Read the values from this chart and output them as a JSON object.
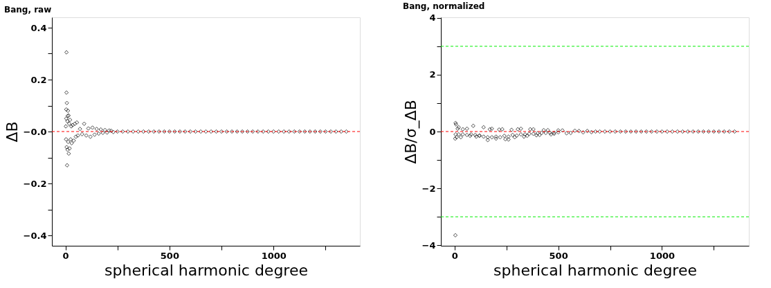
{
  "chart_data": [
    {
      "type": "scatter",
      "title": "Bang, raw",
      "xlabel": "spherical harmonic degree",
      "ylabel": "ΔB",
      "marker": "diamond",
      "grid": false,
      "legend": false,
      "xlim": [
        -65,
        1415
      ],
      "xticks": [
        0,
        {
          "value": 250,
          "label": null
        },
        500,
        {
          "value": 750,
          "label": null
        },
        1000,
        {
          "value": 1250,
          "label": null
        }
      ],
      "ylim": [
        -0.44,
        0.44
      ],
      "yticks": [
        -0.4,
        {
          "value": -0.3,
          "label": null
        },
        -0.2,
        {
          "value": -0.1,
          "label": null
        },
        {
          "value": 0,
          "label": "−0.0"
        },
        {
          "value": 0.1,
          "label": null
        },
        0.2,
        {
          "value": 0.3,
          "label": null
        },
        0.4
      ],
      "ref_lines": [
        {
          "axis": "y",
          "value": 0,
          "color": "#ff0000",
          "line_style": "dashed"
        }
      ],
      "series": [
        {
          "color": "#000000",
          "x": [
            2,
            3,
            4,
            4,
            5,
            5,
            6,
            7,
            8,
            9,
            10,
            11,
            12,
            13,
            15,
            16,
            18,
            20,
            22,
            25,
            28,
            30,
            35,
            40,
            45,
            50,
            55,
            60,
            70,
            80,
            90,
            100,
            110,
            120,
            130,
            140,
            150,
            160,
            170,
            180,
            190,
            200,
            210,
            220,
            230,
            250,
            275,
            300,
            325,
            350,
            375,
            400,
            425,
            450,
            475,
            500,
            525,
            550,
            575,
            600,
            625,
            650,
            675,
            700,
            725,
            750,
            775,
            800,
            825,
            850,
            875,
            900,
            925,
            950,
            975,
            1000,
            1025,
            1050,
            1075,
            1100,
            1125,
            1150,
            1175,
            1200,
            1225,
            1250,
            1275,
            1300,
            1325,
            1350
          ],
          "values": [
            0.02,
            -0.03,
            0.05,
            0.085,
            0.305,
            0.15,
            -0.06,
            0.11,
            -0.13,
            0.04,
            -0.07,
            0.06,
            0.08,
            -0.04,
            0.062,
            -0.085,
            0.03,
            -0.065,
            0.045,
            -0.03,
            0.02,
            -0.045,
            0.025,
            -0.035,
            0.03,
            -0.02,
            0.035,
            -0.015,
            0.01,
            -0.01,
            0.03,
            -0.015,
            0.012,
            -0.02,
            0.015,
            -0.012,
            0.01,
            -0.008,
            0.008,
            -0.005,
            0.006,
            -0.004,
            0.004,
            0.003,
            -0.002,
            0,
            0,
            0,
            0,
            0,
            0,
            0,
            0,
            0,
            0,
            0,
            0,
            0,
            0,
            0,
            0,
            0,
            0,
            0,
            0,
            0,
            0,
            0,
            0,
            0,
            0,
            0,
            0,
            0,
            0,
            0,
            0,
            0,
            0,
            0,
            0,
            0,
            0,
            0,
            0,
            0,
            0,
            0,
            0,
            0
          ]
        }
      ]
    },
    {
      "type": "scatter",
      "title": "Bang, normalized",
      "xlabel": "spherical harmonic degree",
      "ylabel": "ΔB/σ_ΔB",
      "marker": "diamond",
      "grid": false,
      "legend": false,
      "xlim": [
        -66,
        1419
      ],
      "xticks": [
        0,
        {
          "value": 250,
          "label": null
        },
        500,
        {
          "value": 750,
          "label": null
        },
        1000,
        {
          "value": 1250,
          "label": null
        }
      ],
      "ylim": [
        -4.02,
        4.02
      ],
      "yticks": [
        -4,
        {
          "value": -3,
          "label": null
        },
        -2,
        {
          "value": -1,
          "label": null
        },
        0,
        {
          "value": 1,
          "label": null
        },
        2,
        {
          "value": 3,
          "label": null
        },
        4
      ],
      "ref_lines": [
        {
          "axis": "y",
          "value": 0,
          "color": "#ff0000",
          "line_style": "dashed"
        },
        {
          "axis": "y",
          "value": 3,
          "color": "#00ee00",
          "line_style": "dashed"
        },
        {
          "axis": "y",
          "value": -3,
          "color": "#00ee00",
          "line_style": "dashed"
        }
      ],
      "series": [
        {
          "color": "#000000",
          "x": [
            3,
            4,
            5,
            7,
            10,
            15,
            20,
            30,
            40,
            60,
            75,
            90,
            105,
            120,
            140,
            160,
            170,
            180,
            200,
            215,
            230,
            245,
            260,
            275,
            290,
            305,
            320,
            335,
            350,
            365,
            380,
            395,
            410,
            430,
            450,
            465,
            480,
            500,
            520,
            540,
            560,
            580,
            600,
            620,
            640,
            660,
            5,
            20,
            40,
            60,
            80,
            100,
            120,
            140,
            160,
            180,
            200,
            220,
            240,
            260,
            280,
            300,
            320,
            340,
            360,
            380,
            400,
            420,
            440,
            460,
            480,
            500,
            680,
            700,
            725,
            750,
            775,
            800,
            825,
            850,
            875,
            900,
            925,
            950,
            975,
            1000,
            1025,
            1050,
            1075,
            1100,
            1125,
            1150,
            1175,
            1200,
            1225,
            1250,
            1275,
            1300,
            1325,
            1350
          ],
          "values": [
            -0.25,
            -3.65,
            0.3,
            0.25,
            -0.2,
            0.1,
            0.15,
            -0.2,
            0.08,
            0.1,
            -0.15,
            0.2,
            -0.18,
            -0.15,
            0.15,
            -0.3,
            0.08,
            0.1,
            -0.25,
            0.07,
            0.08,
            -0.27,
            -0.28,
            0.06,
            -0.2,
            0.08,
            0.1,
            -0.18,
            -0.15,
            0.08,
            0.08,
            -0.13,
            -0.12,
            0.05,
            0.05,
            -0.1,
            -0.08,
            0.04,
            0.04,
            -0.06,
            -0.05,
            0.03,
            0.02,
            -0.03,
            0.02,
            -0.02,
            -0.1,
            -0.1,
            -0.1,
            -0.12,
            -0.1,
            -0.12,
            -0.14,
            -0.18,
            -0.2,
            -0.2,
            -0.18,
            -0.2,
            -0.15,
            -0.18,
            -0.12,
            -0.14,
            -0.1,
            -0.1,
            -0.08,
            -0.08,
            -0.06,
            -0.05,
            -0.05,
            -0.04,
            -0.04,
            -0.03,
            0,
            0,
            0,
            0,
            0,
            0,
            0,
            0,
            0,
            0,
            0,
            0,
            0,
            0,
            0,
            0,
            0,
            0,
            0,
            0,
            0,
            0,
            0,
            0,
            0,
            0,
            0,
            0
          ]
        }
      ]
    }
  ]
}
